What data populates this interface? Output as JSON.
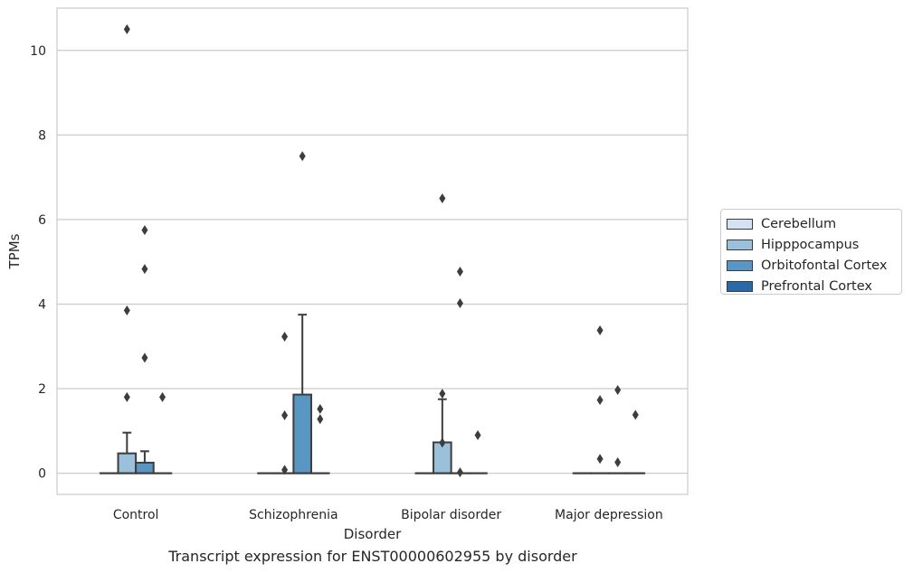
{
  "caption": "Transcript expression for ENST00000602955 by disorder",
  "chart_data": {
    "type": "box",
    "xlabel": "Disorder",
    "ylabel": "TPMs",
    "ylim": [
      -0.5,
      11
    ],
    "yticks": [
      0,
      2,
      4,
      6,
      8,
      10
    ],
    "grid": "horizontal",
    "legend_placement": "right",
    "categories": [
      "Control",
      "Schizophrenia",
      "Bipolar disorder",
      "Major depression"
    ],
    "series": [
      {
        "name": "Cerebellum",
        "color": "#d3e3f3",
        "boxes": [
          {
            "category": "Control",
            "q1": 0,
            "median": 0,
            "q3": 0,
            "whisker_low": 0,
            "whisker_high": 0,
            "outliers": []
          },
          {
            "category": "Schizophrenia",
            "q1": 0,
            "median": 0,
            "q3": 0,
            "whisker_low": 0,
            "whisker_high": 0,
            "outliers": []
          },
          {
            "category": "Bipolar disorder",
            "q1": 0,
            "median": 0,
            "q3": 0,
            "whisker_low": 0,
            "whisker_high": 0,
            "outliers": []
          },
          {
            "category": "Major depression",
            "q1": 0,
            "median": 0,
            "q3": 0,
            "whisker_low": 0,
            "whisker_high": 0,
            "outliers": []
          }
        ]
      },
      {
        "name": "Hipppocampus",
        "color": "#9ac0da",
        "boxes": [
          {
            "category": "Control",
            "q1": 0,
            "median": 0,
            "q3": 0.47,
            "whisker_low": 0,
            "whisker_high": 0.96,
            "outliers": [
              10.5,
              3.85,
              1.8
            ]
          },
          {
            "category": "Schizophrenia",
            "q1": 0,
            "median": 0,
            "q3": 0,
            "whisker_low": 0,
            "whisker_high": 0,
            "outliers": [
              3.23,
              1.37,
              0.08
            ]
          },
          {
            "category": "Bipolar disorder",
            "q1": 0,
            "median": 0,
            "q3": 0.73,
            "whisker_low": 0,
            "whisker_high": 1.75,
            "outliers": [
              6.5,
              1.88,
              0.72
            ]
          },
          {
            "category": "Major depression",
            "q1": 0,
            "median": 0,
            "q3": 0,
            "whisker_low": 0,
            "whisker_high": 0,
            "outliers": [
              3.38,
              1.73,
              0.34
            ]
          }
        ]
      },
      {
        "name": "Orbitofontal Cortex",
        "color": "#5897c4",
        "boxes": [
          {
            "category": "Control",
            "q1": 0,
            "median": 0,
            "q3": 0.25,
            "whisker_low": 0,
            "whisker_high": 0.52,
            "outliers": [
              5.75,
              4.83,
              2.73
            ]
          },
          {
            "category": "Schizophrenia",
            "q1": 0,
            "median": 0,
            "q3": 1.86,
            "whisker_low": 0,
            "whisker_high": 3.75,
            "outliers": [
              7.5
            ]
          },
          {
            "category": "Bipolar disorder",
            "q1": 0,
            "median": 0,
            "q3": 0,
            "whisker_low": 0,
            "whisker_high": 0,
            "outliers": [
              4.77,
              4.02,
              0.02
            ]
          },
          {
            "category": "Major depression",
            "q1": 0,
            "median": 0,
            "q3": 0,
            "whisker_low": 0,
            "whisker_high": 0,
            "outliers": [
              1.97,
              0.26
            ]
          }
        ]
      },
      {
        "name": "Prefrontal Cortex",
        "color": "#2a69a8",
        "boxes": [
          {
            "category": "Control",
            "q1": 0,
            "median": 0,
            "q3": 0,
            "whisker_low": 0,
            "whisker_high": 0,
            "outliers": [
              1.8
            ]
          },
          {
            "category": "Schizophrenia",
            "q1": 0,
            "median": 0,
            "q3": 0,
            "whisker_low": 0,
            "whisker_high": 0,
            "outliers": [
              1.52,
              1.28
            ]
          },
          {
            "category": "Bipolar disorder",
            "q1": 0,
            "median": 0,
            "q3": 0,
            "whisker_low": 0,
            "whisker_high": 0,
            "outliers": [
              0.9
            ]
          },
          {
            "category": "Major depression",
            "q1": 0,
            "median": 0,
            "q3": 0,
            "whisker_low": 0,
            "whisker_high": 0,
            "outliers": [
              1.38
            ]
          }
        ]
      }
    ]
  }
}
